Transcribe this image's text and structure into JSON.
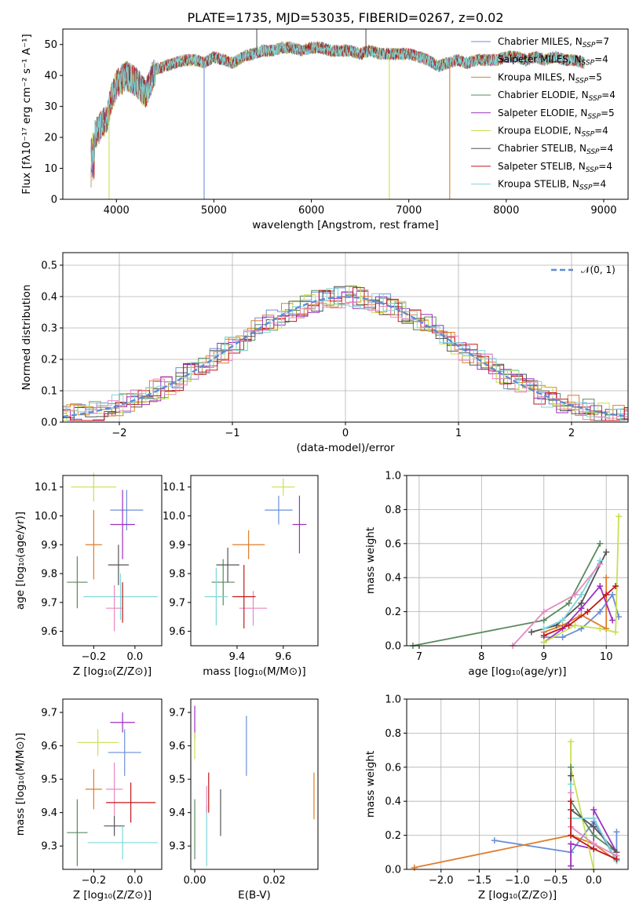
{
  "chart_data": [
    {
      "type": "line",
      "title": "PLATE=1735, MJD=53035, FIBERID=0267, z=0.02",
      "xlabel": "wavelength [Angstrom, rest frame]",
      "ylabel": "Flux [fλ10⁻¹⁷ erg cm⁻² s⁻¹ A⁻¹]",
      "xlim": [
        3450,
        9250
      ],
      "ylim": [
        0,
        55
      ],
      "xticks": [
        4000,
        5000,
        6000,
        7000,
        8000,
        9000
      ],
      "yticks": [
        0,
        10,
        20,
        30,
        40,
        50
      ],
      "legend_position": "top-right",
      "series": [
        {
          "name": "Chabrier MILES, N",
          "sub": "SSP",
          "tail": "=7",
          "color": "#6a8fd8"
        },
        {
          "name": "Salpeter MILES, N",
          "sub": "SSP",
          "tail": "=4",
          "color": "#e07c2a"
        },
        {
          "name": "Kroupa MILES, N",
          "sub": "SSP",
          "tail": "=5",
          "color": "#c8872e"
        },
        {
          "name": "Chabrier ELODIE, N",
          "sub": "SSP",
          "tail": "=4",
          "color": "#5a8a5e"
        },
        {
          "name": "Salpeter ELODIE, N",
          "sub": "SSP",
          "tail": "=5",
          "color": "#9b30c0"
        },
        {
          "name": "Kroupa ELODIE, N",
          "sub": "SSP",
          "tail": "=4",
          "color": "#c9df52"
        },
        {
          "name": "Chabrier STELIB, N",
          "sub": "SSP",
          "tail": "=4",
          "color": "#555555"
        },
        {
          "name": "Salpeter STELIB, N",
          "sub": "SSP",
          "tail": "=4",
          "color": "#c01818"
        },
        {
          "name": "Kroupa STELIB, N",
          "sub": "SSP",
          "tail": "=4",
          "color": "#7fd6d8"
        }
      ],
      "continuum_points": {
        "x": [
          3740,
          3800,
          3900,
          3950,
          4000,
          4100,
          4200,
          4300,
          4400,
          4500,
          4600,
          4700,
          4800,
          4900,
          5000,
          5100,
          5200,
          5300,
          5400,
          5500,
          5600,
          5700,
          5800,
          5900,
          6000,
          6100,
          6200,
          6300,
          6400,
          6500,
          6600,
          6700,
          6800,
          6900,
          7000,
          7100,
          7200,
          7300,
          7400,
          7500,
          7600,
          7700,
          7800,
          7900,
          8000,
          8100,
          8200,
          8300,
          8400,
          8500,
          8600,
          8700,
          8800
        ],
        "y": [
          18,
          22,
          26,
          33,
          37,
          40,
          38,
          34,
          42,
          43,
          44,
          45,
          45,
          44,
          46,
          45,
          44,
          46,
          47,
          48,
          48,
          49,
          49,
          48,
          49,
          49,
          48,
          48,
          48,
          47,
          48,
          47,
          47,
          47,
          47,
          46,
          45,
          43,
          44,
          45,
          44,
          45,
          45,
          45,
          46,
          46,
          45,
          46,
          45,
          46,
          45,
          45,
          44
        ]
      }
    },
    {
      "type": "step",
      "xlabel": "(data-model)/error",
      "ylabel": "Normed distribution",
      "xlim": [
        -2.5,
        2.5
      ],
      "ylim": [
        0,
        0.54
      ],
      "xticks": [
        -2,
        -1,
        0,
        1,
        2
      ],
      "yticks": [
        0.0,
        0.1,
        0.2,
        0.3,
        0.4,
        0.5
      ],
      "grid": true,
      "legend": "𝒩(0, 1)",
      "legend_position": "top-right",
      "gaussian": {
        "mean": 0,
        "sigma": 1,
        "color": "#5b8bd6"
      }
    },
    {
      "type": "scatter-errorbar",
      "xlabel": "Z [log₁₀(Z/Z⊙)]",
      "ylabel": "age  [log₁₀(age/yr)]",
      "xlim": [
        -0.35,
        0.13
      ],
      "ylim": [
        9.55,
        10.14
      ],
      "xticks": [
        -0.2,
        0.0
      ],
      "yticks": [
        9.6,
        9.7,
        9.8,
        9.9,
        10.0,
        10.1
      ],
      "points": [
        {
          "x": -0.04,
          "y": 10.02,
          "xe": 0.08,
          "ye": 0.07,
          "color": "#6a8fd8"
        },
        {
          "x": -0.2,
          "y": 9.9,
          "xe": 0.04,
          "ye": 0.12,
          "color": "#e07c2a"
        },
        {
          "x": -0.06,
          "y": 9.97,
          "xe": 0.06,
          "ye": 0.12,
          "color": "#9b30c0"
        },
        {
          "x": -0.2,
          "y": 10.1,
          "xe": 0.11,
          "ye": 0.05,
          "color": "#c9df52"
        },
        {
          "x": -0.28,
          "y": 9.77,
          "xe": 0.05,
          "ye": 0.09,
          "color": "#5a8a5e"
        },
        {
          "x": -0.08,
          "y": 9.83,
          "xe": 0.05,
          "ye": 0.07,
          "color": "#555555"
        },
        {
          "x": -0.07,
          "y": 9.72,
          "xe": 0.18,
          "ye": 0.08,
          "color": "#7fd6d8"
        },
        {
          "x": -0.1,
          "y": 9.68,
          "xe": 0.04,
          "ye": 0.08,
          "color": "#e58ac0"
        },
        {
          "x": -0.06,
          "y": 9.7,
          "xe": 0.0,
          "ye": 0.07,
          "color": "#c01818"
        }
      ]
    },
    {
      "type": "scatter-errorbar",
      "xlabel": "mass [log₁₀(M/M⊙)]",
      "ylabel": "",
      "xlim": [
        9.2,
        9.75
      ],
      "ylim": [
        9.55,
        10.14
      ],
      "xticks": [
        9.4,
        9.6
      ],
      "yticks": [
        9.6,
        9.7,
        9.8,
        9.9,
        10.0,
        10.1
      ],
      "points": [
        {
          "x": 9.58,
          "y": 10.02,
          "xe": 0.06,
          "ye": 0.05,
          "color": "#6a8fd8"
        },
        {
          "x": 9.45,
          "y": 9.9,
          "xe": 0.07,
          "ye": 0.05,
          "color": "#e07c2a"
        },
        {
          "x": 9.67,
          "y": 9.97,
          "xe": 0.03,
          "ye": 0.1,
          "color": "#9b30c0"
        },
        {
          "x": 9.6,
          "y": 10.1,
          "xe": 0.05,
          "ye": 0.03,
          "color": "#c9df52"
        },
        {
          "x": 9.34,
          "y": 9.77,
          "xe": 0.05,
          "ye": 0.08,
          "color": "#5a8a5e"
        },
        {
          "x": 9.36,
          "y": 9.83,
          "xe": 0.05,
          "ye": 0.06,
          "color": "#555555"
        },
        {
          "x": 9.31,
          "y": 9.72,
          "xe": 0.05,
          "ye": 0.1,
          "color": "#7fd6d8"
        },
        {
          "x": 9.47,
          "y": 9.68,
          "xe": 0.06,
          "ye": 0.06,
          "color": "#e58ac0"
        },
        {
          "x": 9.43,
          "y": 9.72,
          "xe": 0.05,
          "ye": 0.11,
          "color": "#c01818"
        }
      ]
    },
    {
      "type": "line",
      "xlabel": "age  [log₁₀(age/yr)]",
      "ylabel": "mass weight",
      "xlim": [
        6.8,
        10.35
      ],
      "ylim": [
        0,
        1.0
      ],
      "xticks": [
        7,
        8,
        9,
        10
      ],
      "yticks": [
        0.0,
        0.2,
        0.4,
        0.6,
        0.8,
        1.0
      ],
      "grid": true,
      "series": [
        {
          "color": "#6a8fd8",
          "x": [
            9.0,
            9.3,
            9.6,
            9.9,
            10.1,
            10.2
          ],
          "y": [
            0.05,
            0.05,
            0.1,
            0.2,
            0.3,
            0.17
          ]
        },
        {
          "color": "#e07c2a",
          "x": [
            9.0,
            9.3,
            9.6,
            10.0,
            10.0
          ],
          "y": [
            0.08,
            0.12,
            0.18,
            0.1,
            0.4
          ]
        },
        {
          "color": "#9b30c0",
          "x": [
            9.0,
            9.3,
            9.6,
            9.9,
            10.1
          ],
          "y": [
            0.02,
            0.1,
            0.22,
            0.35,
            0.15
          ]
        },
        {
          "color": "#c9df52",
          "x": [
            9.0,
            9.5,
            9.9,
            10.15,
            10.2
          ],
          "y": [
            0.02,
            0.12,
            0.1,
            0.08,
            0.76
          ]
        },
        {
          "color": "#5a8a5e",
          "x": [
            6.9,
            9.0,
            9.4,
            9.9
          ],
          "y": [
            0.0,
            0.15,
            0.25,
            0.6
          ]
        },
        {
          "color": "#555555",
          "x": [
            8.8,
            9.2,
            9.6,
            10.0
          ],
          "y": [
            0.08,
            0.12,
            0.25,
            0.55
          ]
        },
        {
          "color": "#7fd6d8",
          "x": [
            9.0,
            9.3,
            9.6,
            9.9
          ],
          "y": [
            0.1,
            0.15,
            0.3,
            0.5
          ]
        },
        {
          "color": "#e58ac0",
          "x": [
            8.5,
            9.0,
            9.5,
            9.9
          ],
          "y": [
            0.0,
            0.2,
            0.3,
            0.48
          ]
        },
        {
          "color": "#c01818",
          "x": [
            9.0,
            9.4,
            9.7,
            10.0,
            10.15
          ],
          "y": [
            0.06,
            0.12,
            0.2,
            0.3,
            0.35
          ]
        }
      ]
    },
    {
      "type": "scatter-errorbar",
      "xlabel": "Z [log₁₀(Z/Z⊙)]",
      "ylabel": "mass [log₁₀(M/M⊙)]",
      "xlim": [
        -0.35,
        0.13
      ],
      "ylim": [
        9.23,
        9.74
      ],
      "xticks": [
        -0.2,
        0.0
      ],
      "yticks": [
        9.3,
        9.4,
        9.5,
        9.6,
        9.7
      ],
      "points": [
        {
          "x": -0.05,
          "y": 9.58,
          "xe": 0.08,
          "ye": 0.07,
          "color": "#6a8fd8"
        },
        {
          "x": -0.2,
          "y": 9.47,
          "xe": 0.04,
          "ye": 0.06,
          "color": "#e07c2a"
        },
        {
          "x": -0.06,
          "y": 9.67,
          "xe": 0.06,
          "ye": 0.03,
          "color": "#9b30c0"
        },
        {
          "x": -0.18,
          "y": 9.61,
          "xe": 0.1,
          "ye": 0.04,
          "color": "#c9df52"
        },
        {
          "x": -0.28,
          "y": 9.34,
          "xe": 0.05,
          "ye": 0.1,
          "color": "#5a8a5e"
        },
        {
          "x": -0.1,
          "y": 9.36,
          "xe": 0.05,
          "ye": 0.03,
          "color": "#555555"
        },
        {
          "x": -0.06,
          "y": 9.31,
          "xe": 0.17,
          "ye": 0.05,
          "color": "#7fd6d8"
        },
        {
          "x": -0.1,
          "y": 9.47,
          "xe": 0.04,
          "ye": 0.08,
          "color": "#e58ac0"
        },
        {
          "x": -0.02,
          "y": 9.43,
          "xe": 0.12,
          "ye": 0.06,
          "color": "#c01818"
        }
      ]
    },
    {
      "type": "scatter-errorbar",
      "xlabel": "E(B-V)",
      "ylabel": "",
      "xlim": [
        -0.001,
        0.031
      ],
      "ylim": [
        9.23,
        9.74
      ],
      "xticks": [
        0.0,
        0.02
      ],
      "yticks": [
        9.3,
        9.4,
        9.5,
        9.6,
        9.7
      ],
      "points": [
        {
          "x": 0.013,
          "y": 9.6,
          "xe": 0,
          "ye": 0.09,
          "color": "#6a8fd8"
        },
        {
          "x": 0.03,
          "y": 9.45,
          "xe": 0,
          "ye": 0.07,
          "color": "#e07c2a"
        },
        {
          "x": 0.0,
          "y": 9.67,
          "xe": 0,
          "ye": 0.05,
          "color": "#9b30c0"
        },
        {
          "x": 0.0,
          "y": 9.6,
          "xe": 0,
          "ye": 0.04,
          "color": "#c9df52"
        },
        {
          "x": 0.0,
          "y": 9.35,
          "xe": 0,
          "ye": 0.09,
          "color": "#5a8a5e"
        },
        {
          "x": 0.0065,
          "y": 9.4,
          "xe": 0,
          "ye": 0.07,
          "color": "#555555"
        },
        {
          "x": 0.003,
          "y": 9.33,
          "xe": 0,
          "ye": 0.09,
          "color": "#7fd6d8"
        },
        {
          "x": 0.003,
          "y": 9.44,
          "xe": 0,
          "ye": 0.04,
          "color": "#e58ac0"
        },
        {
          "x": 0.0035,
          "y": 9.46,
          "xe": 0,
          "ye": 0.06,
          "color": "#c01818"
        }
      ]
    },
    {
      "type": "line",
      "xlabel": "Z [log₁₀(Z/Z⊙)]",
      "ylabel": "mass weight",
      "xlim": [
        -2.45,
        0.45
      ],
      "ylim": [
        0,
        1.0
      ],
      "xticks": [
        -2.0,
        -1.5,
        -1.0,
        -0.5,
        0.0
      ],
      "yticks": [
        0.0,
        0.2,
        0.4,
        0.6,
        0.8,
        1.0
      ],
      "grid": true,
      "series": [
        {
          "color": "#6a8fd8",
          "x": [
            -1.3,
            -0.3,
            0.0,
            0.3,
            0.3
          ],
          "y": [
            0.17,
            0.1,
            0.28,
            0.05,
            0.22
          ]
        },
        {
          "color": "#e07c2a",
          "x": [
            -2.35,
            -0.3,
            0.0,
            0.3
          ],
          "y": [
            0.01,
            0.2,
            0.15,
            0.05
          ]
        },
        {
          "color": "#9b30c0",
          "x": [
            -0.3,
            -0.3,
            0.0,
            0.0,
            0.3
          ],
          "y": [
            0.02,
            0.15,
            0.12,
            0.35,
            0.1
          ]
        },
        {
          "color": "#c9df52",
          "x": [
            -0.3,
            -0.3,
            0.0
          ],
          "y": [
            0.75,
            0.6,
            0.0
          ]
        },
        {
          "color": "#5a8a5e",
          "x": [
            -0.3,
            -0.3,
            0.0,
            0.3
          ],
          "y": [
            0.6,
            0.4,
            0.2,
            0.1
          ]
        },
        {
          "color": "#555555",
          "x": [
            -0.3,
            -0.3,
            0.0,
            0.3
          ],
          "y": [
            0.55,
            0.35,
            0.25,
            0.1
          ]
        },
        {
          "color": "#7fd6d8",
          "x": [
            -0.3,
            -0.3,
            0.0,
            0.3
          ],
          "y": [
            0.5,
            0.3,
            0.3,
            0.05
          ]
        },
        {
          "color": "#e58ac0",
          "x": [
            -0.3,
            -0.3,
            0.0,
            0.3
          ],
          "y": [
            0.45,
            0.25,
            0.15,
            0.08
          ]
        },
        {
          "color": "#c01818",
          "x": [
            -0.3,
            -0.3,
            0.0,
            0.3
          ],
          "y": [
            0.4,
            0.2,
            0.12,
            0.06
          ]
        }
      ]
    }
  ]
}
